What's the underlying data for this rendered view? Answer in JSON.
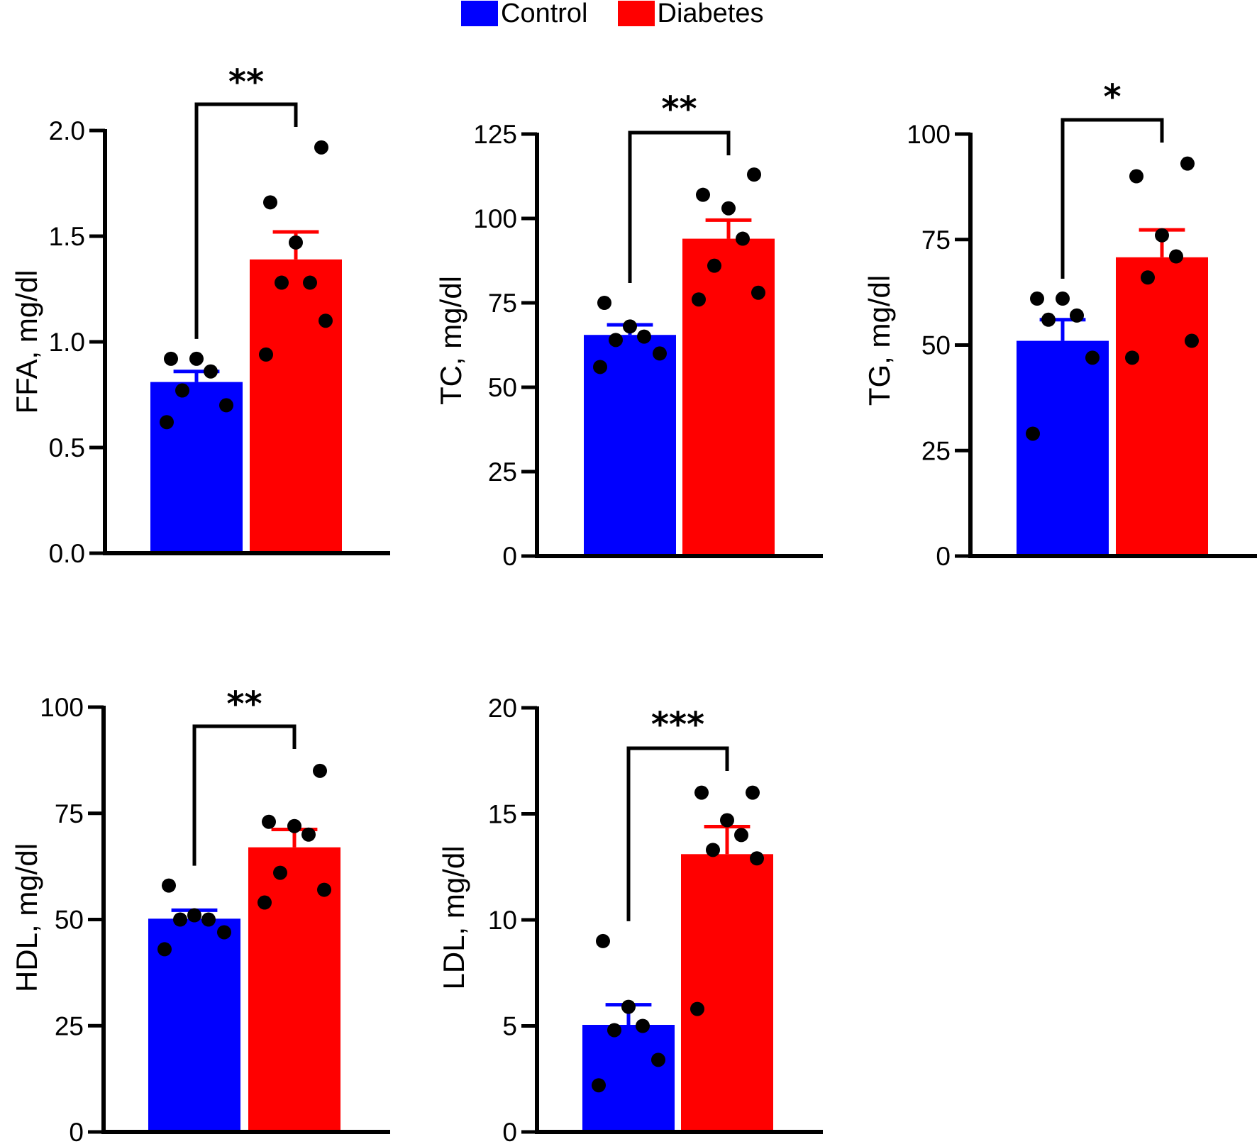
{
  "legend": {
    "items": [
      {
        "label": "Control",
        "color": "#0000FF"
      },
      {
        "label": "Diabetes",
        "color": "#FF0000"
      }
    ]
  },
  "chart_data": [
    {
      "type": "bar",
      "ylabel": "FFA, mg/dl",
      "ylim": [
        0,
        2.0
      ],
      "yticks": [
        0,
        0.5,
        1.0,
        1.5,
        2.0
      ],
      "tick_labels": [
        "0.0",
        "0.5",
        "1.0",
        "1.5",
        "2.0"
      ],
      "categories": [
        "Control",
        "Diabetes"
      ],
      "series": [
        {
          "name": "Control",
          "color": "#0000FF",
          "mean": 0.81,
          "sem": 0.05,
          "points": [
            0.62,
            0.7,
            0.77,
            0.86,
            0.92,
            0.92
          ]
        },
        {
          "name": "Diabetes",
          "color": "#FF0000",
          "mean": 1.39,
          "sem": 0.13,
          "points": [
            0.94,
            1.1,
            1.28,
            1.28,
            1.47,
            1.66,
            1.92
          ]
        }
      ],
      "significance": "**"
    },
    {
      "type": "bar",
      "ylabel": "TC, mg/dl",
      "ylim": [
        0,
        125
      ],
      "yticks": [
        0,
        25,
        50,
        75,
        100,
        125
      ],
      "tick_labels": [
        "0",
        "25",
        "50",
        "75",
        "100",
        "125"
      ],
      "categories": [
        "Control",
        "Diabetes"
      ],
      "series": [
        {
          "name": "Control",
          "color": "#0000FF",
          "mean": 65.5,
          "sem": 3,
          "points": [
            56,
            60,
            64,
            65,
            68,
            75
          ]
        },
        {
          "name": "Diabetes",
          "color": "#FF0000",
          "mean": 94,
          "sem": 5.5,
          "points": [
            76,
            78,
            86,
            94,
            103,
            107,
            113
          ]
        }
      ],
      "significance": "**"
    },
    {
      "type": "bar",
      "ylabel": "TG, mg/dl",
      "ylim": [
        0,
        100
      ],
      "yticks": [
        0,
        25,
        50,
        75,
        100
      ],
      "tick_labels": [
        "0",
        "25",
        "50",
        "75",
        "100"
      ],
      "categories": [
        "Control",
        "Diabetes"
      ],
      "series": [
        {
          "name": "Control",
          "color": "#0000FF",
          "mean": 51,
          "sem": 5,
          "points": [
            29,
            47,
            56,
            57,
            61,
            61
          ]
        },
        {
          "name": "Diabetes",
          "color": "#FF0000",
          "mean": 70.8,
          "sem": 6.5,
          "points": [
            47,
            51,
            66,
            71,
            76,
            90,
            93
          ]
        }
      ],
      "significance": "*"
    },
    {
      "type": "bar",
      "ylabel": "HDL, mg/dl",
      "ylim": [
        0,
        100
      ],
      "yticks": [
        0,
        25,
        50,
        75,
        100
      ],
      "tick_labels": [
        "0",
        "25",
        "50",
        "75",
        "100"
      ],
      "categories": [
        "Control",
        "Diabetes"
      ],
      "series": [
        {
          "name": "Control",
          "color": "#0000FF",
          "mean": 50.2,
          "sem": 2,
          "points": [
            43,
            47,
            50,
            50,
            51,
            58
          ]
        },
        {
          "name": "Diabetes",
          "color": "#FF0000",
          "mean": 67,
          "sem": 4.2,
          "points": [
            54,
            57,
            61,
            70,
            72,
            73,
            85
          ]
        }
      ],
      "significance": "**"
    },
    {
      "type": "bar",
      "ylabel": "LDL, mg/dl",
      "ylim": [
        0,
        20
      ],
      "yticks": [
        0,
        5,
        10,
        15,
        20
      ],
      "tick_labels": [
        "0",
        "5",
        "10",
        "15",
        "20"
      ],
      "categories": [
        "Control",
        "Diabetes"
      ],
      "series": [
        {
          "name": "Control",
          "color": "#0000FF",
          "mean": 5.05,
          "sem": 0.95,
          "points": [
            2.2,
            3.4,
            4.8,
            5.0,
            5.9,
            9.0
          ]
        },
        {
          "name": "Diabetes",
          "color": "#FF0000",
          "mean": 13.1,
          "sem": 1.3,
          "points": [
            5.8,
            12.9,
            13.3,
            14.0,
            14.7,
            16.0,
            16.0
          ]
        }
      ],
      "significance": "***"
    }
  ]
}
